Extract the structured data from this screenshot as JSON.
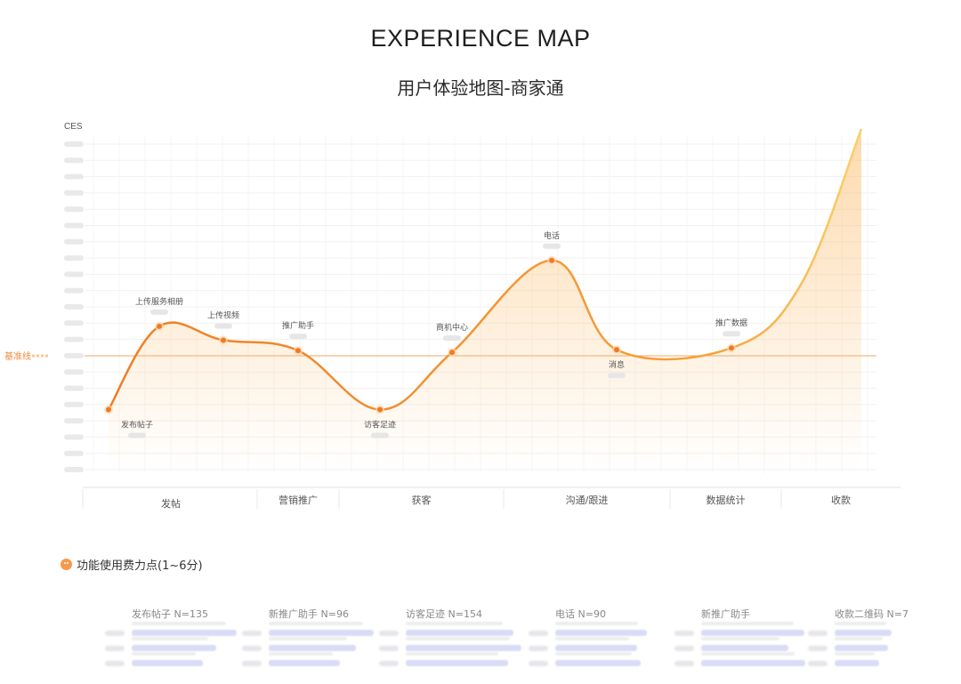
{
  "header": {
    "title": "EXPERIENCE MAP",
    "subtitle": "用户体验地图-商家通"
  },
  "chart_data": {
    "type": "line",
    "ylabel": "CES",
    "baseline_label": "基准线",
    "curve_color": "#f18a2f",
    "fill_color": "#fbb861",
    "grid": true,
    "points": [
      {
        "label": "发布帖子",
        "x": 1,
        "y": -3.1
      },
      {
        "label": "上传服务相册",
        "x": 2,
        "y": 1.7
      },
      {
        "label": "上传视频",
        "x": 3,
        "y": 0.9
      },
      {
        "label": "推广助手",
        "x": 4,
        "y": 0.3
      },
      {
        "label": "访客足迹",
        "x": 5,
        "y": -3.1
      },
      {
        "label": "商机中心",
        "x": 6,
        "y": 0.2
      },
      {
        "label": "电话",
        "x": 7,
        "y": 5.5
      },
      {
        "label": "消息",
        "x": 8,
        "y": 0.35
      },
      {
        "label": "推广数据",
        "x": 9,
        "y": 0.45
      }
    ],
    "stages": [
      {
        "label": "发帖"
      },
      {
        "label": "营销推广"
      },
      {
        "label": "获客"
      },
      {
        "label": "沟通/跟进"
      },
      {
        "label": "数据统计"
      },
      {
        "label": "收款"
      }
    ]
  },
  "pain_section": {
    "title": "功能使用费力点(1~6分)",
    "columns": [
      {
        "label": "发布帖子",
        "n": "N=135"
      },
      {
        "label": "新推广助手",
        "n": "N=96"
      },
      {
        "label": "访客足迹",
        "n": "N=154"
      },
      {
        "label": "电话",
        "n": "N=90"
      },
      {
        "label": "新推广助手",
        "n": ""
      },
      {
        "label": "收款二维码",
        "n": "N=7"
      }
    ]
  }
}
